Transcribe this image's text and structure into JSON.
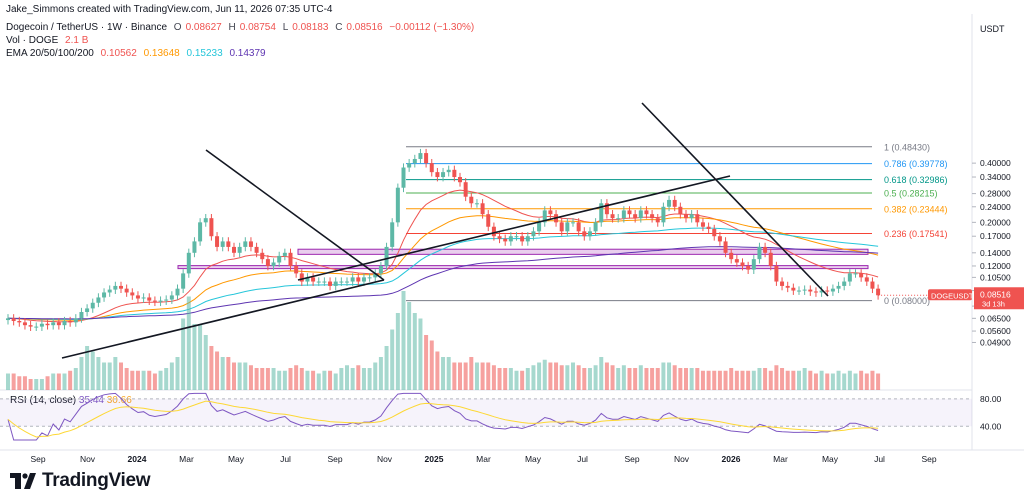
{
  "credit": "Jake_Simmons created with TradingView.com, Jun 11, 2026 07:35 UTC-4",
  "symbol_line": {
    "name": "Dogecoin / TetherUS · 1W · Binance",
    "o_label": "O",
    "o": "0.08627",
    "h_label": "H",
    "h": "0.08754",
    "l_label": "L",
    "l": "0.08183",
    "c_label": "C",
    "c": "0.08516",
    "change": "−0.00112 (−1.30%)"
  },
  "vol_line": {
    "label": "Vol · DOGE",
    "value": "2.1 B"
  },
  "ema_line": {
    "label": "EMA 20/50/100/200",
    "values": [
      "0.10562",
      "0.13648",
      "0.15233",
      "0.14379"
    ],
    "colors": [
      "#ef5350",
      "#ff9800",
      "#26c6da",
      "#5e35b1"
    ]
  },
  "rsi_line": {
    "label": "RSI (14, close)",
    "v1": "35.44",
    "v2": "30.66"
  },
  "colors": {
    "up": "#5db8a6",
    "down": "#ef5350",
    "fib": "#787b86",
    "zone": "#ce93d8",
    "rsi": "#7e57c2",
    "rsi_ma": "#fdd835"
  },
  "logo": "TradingView",
  "chart_data": {
    "type": "candlestick",
    "currency_label": "USDT",
    "price_axis_ticks": [
      "0.40000",
      "0.34000",
      "0.28000",
      "0.24000",
      "0.20000",
      "0.17000",
      "0.14000",
      "0.12000",
      "0.10500",
      "0.09000",
      "0.07500",
      "0.06500",
      "0.05600",
      "0.04900"
    ],
    "price_axis_values": [
      0.4,
      0.34,
      0.28,
      0.24,
      0.2,
      0.17,
      0.14,
      0.12,
      0.105,
      0.09,
      0.075,
      0.065,
      0.056,
      0.049
    ],
    "ylim": [
      0.044,
      0.52
    ],
    "y_scale": "log",
    "time_axis": [
      "Sep",
      "Nov",
      "2024",
      "Mar",
      "May",
      "Jul",
      "Sep",
      "Nov",
      "2025",
      "Mar",
      "May",
      "Jul",
      "Sep",
      "Nov",
      "2026",
      "Mar",
      "May",
      "Jul",
      "Sep"
    ],
    "current_price_tag": {
      "symbol": "DOGEUSDT",
      "price": "0.08516",
      "countdown": "3d 13h"
    },
    "fib_levels": [
      {
        "ratio": "1",
        "price": "0.48430",
        "color": "#787b86"
      },
      {
        "ratio": "0.786",
        "price": "0.39778",
        "color": "#2196f3"
      },
      {
        "ratio": "0.618",
        "price": "0.32986",
        "color": "#009688"
      },
      {
        "ratio": "0.5",
        "price": "0.28215",
        "color": "#4caf50"
      },
      {
        "ratio": "0.382",
        "price": "0.23444",
        "color": "#ff9800"
      },
      {
        "ratio": "0.236",
        "price": "0.17541",
        "color": "#f44336"
      },
      {
        "ratio": "0",
        "price": "0.08000",
        "color": "#787b86"
      }
    ],
    "zones": [
      [
        0.1375,
        0.146
      ],
      [
        0.1165,
        0.1205
      ]
    ],
    "close": [
      0.065,
      0.063,
      0.062,
      0.06,
      0.059,
      0.059,
      0.061,
      0.06,
      0.062,
      0.06,
      0.063,
      0.062,
      0.065,
      0.07,
      0.073,
      0.078,
      0.083,
      0.088,
      0.091,
      0.095,
      0.092,
      0.088,
      0.085,
      0.082,
      0.083,
      0.08,
      0.079,
      0.08,
      0.081,
      0.085,
      0.092,
      0.11,
      0.14,
      0.16,
      0.2,
      0.21,
      0.17,
      0.15,
      0.16,
      0.15,
      0.14,
      0.15,
      0.16,
      0.15,
      0.14,
      0.13,
      0.12,
      0.125,
      0.135,
      0.14,
      0.12,
      0.11,
      0.1,
      0.105,
      0.1,
      0.1,
      0.1,
      0.095,
      0.1,
      0.1,
      0.1,
      0.105,
      0.1,
      0.105,
      0.105,
      0.11,
      0.12,
      0.15,
      0.2,
      0.3,
      0.38,
      0.4,
      0.42,
      0.45,
      0.4,
      0.36,
      0.34,
      0.36,
      0.37,
      0.34,
      0.32,
      0.27,
      0.25,
      0.25,
      0.22,
      0.19,
      0.17,
      0.165,
      0.16,
      0.17,
      0.17,
      0.16,
      0.17,
      0.18,
      0.2,
      0.23,
      0.22,
      0.2,
      0.18,
      0.2,
      0.2,
      0.18,
      0.17,
      0.18,
      0.2,
      0.25,
      0.22,
      0.21,
      0.21,
      0.23,
      0.22,
      0.21,
      0.23,
      0.22,
      0.21,
      0.2,
      0.24,
      0.26,
      0.24,
      0.22,
      0.21,
      0.22,
      0.2,
      0.19,
      0.185,
      0.17,
      0.16,
      0.14,
      0.13,
      0.125,
      0.12,
      0.115,
      0.13,
      0.15,
      0.14,
      0.12,
      0.1,
      0.095,
      0.093,
      0.09,
      0.09,
      0.091,
      0.089,
      0.088,
      0.09,
      0.089,
      0.092,
      0.095,
      0.1,
      0.11,
      0.11,
      0.105,
      0.1,
      0.092,
      0.08516
    ],
    "volume_scale": [
      0.3,
      0.3,
      0.25,
      0.25,
      0.2,
      0.2,
      0.2,
      0.25,
      0.3,
      0.3,
      0.3,
      0.35,
      0.4,
      0.6,
      0.8,
      0.7,
      0.6,
      0.5,
      0.5,
      0.6,
      0.5,
      0.4,
      0.35,
      0.35,
      0.35,
      0.35,
      0.3,
      0.35,
      0.4,
      0.5,
      0.6,
      1.3,
      1.7,
      1.2,
      1.2,
      1.0,
      0.8,
      0.7,
      0.6,
      0.6,
      0.5,
      0.5,
      0.5,
      0.45,
      0.4,
      0.4,
      0.4,
      0.4,
      0.35,
      0.35,
      0.4,
      0.45,
      0.4,
      0.35,
      0.35,
      0.3,
      0.35,
      0.35,
      0.3,
      0.4,
      0.45,
      0.4,
      0.45,
      0.4,
      0.4,
      0.5,
      0.6,
      0.8,
      1.1,
      1.4,
      1.8,
      1.6,
      1.4,
      1.3,
      1.0,
      0.9,
      0.7,
      0.6,
      0.6,
      0.5,
      0.5,
      0.5,
      0.6,
      0.5,
      0.5,
      0.5,
      0.45,
      0.4,
      0.4,
      0.4,
      0.35,
      0.35,
      0.4,
      0.45,
      0.5,
      0.55,
      0.5,
      0.5,
      0.45,
      0.45,
      0.5,
      0.45,
      0.4,
      0.4,
      0.45,
      0.6,
      0.5,
      0.45,
      0.4,
      0.45,
      0.4,
      0.4,
      0.45,
      0.4,
      0.4,
      0.4,
      0.5,
      0.5,
      0.45,
      0.4,
      0.4,
      0.4,
      0.4,
      0.35,
      0.35,
      0.35,
      0.35,
      0.35,
      0.4,
      0.35,
      0.35,
      0.35,
      0.35,
      0.4,
      0.4,
      0.35,
      0.45,
      0.4,
      0.35,
      0.35,
      0.35,
      0.4,
      0.35,
      0.3,
      0.35,
      0.3,
      0.3,
      0.35,
      0.3,
      0.35,
      0.3,
      0.35,
      0.3,
      0.35,
      0.3
    ],
    "indicators": [
      "EMA 20",
      "EMA 50",
      "EMA 100",
      "EMA 200",
      "RSI 14"
    ],
    "rsi_levels": [
      "80.00",
      "40.00"
    ]
  }
}
